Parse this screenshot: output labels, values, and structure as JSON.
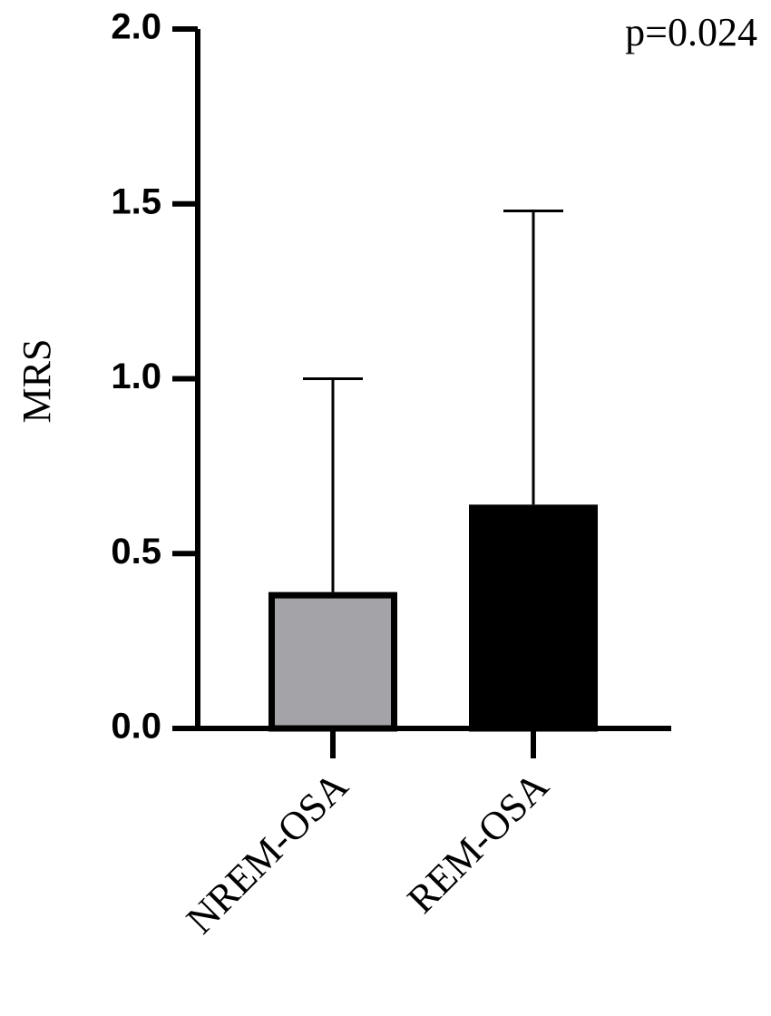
{
  "chart_data": {
    "type": "bar",
    "annotation": "p=0.024",
    "y_label": "MRS",
    "categories": [
      "NREM-OSA",
      "REM-OSA"
    ],
    "values": [
      0.39,
      0.64
    ],
    "errors": [
      0.61,
      0.84
    ],
    "colors": [
      "#a3a3a8",
      "#000000"
    ],
    "ylim": [
      0,
      2
    ],
    "yticks": [
      {
        "value": 0,
        "label": "0.0"
      },
      0.5,
      {
        "value": 1,
        "label": "1.0"
      },
      1.5,
      {
        "value": 2,
        "label": "2.0"
      }
    ]
  }
}
